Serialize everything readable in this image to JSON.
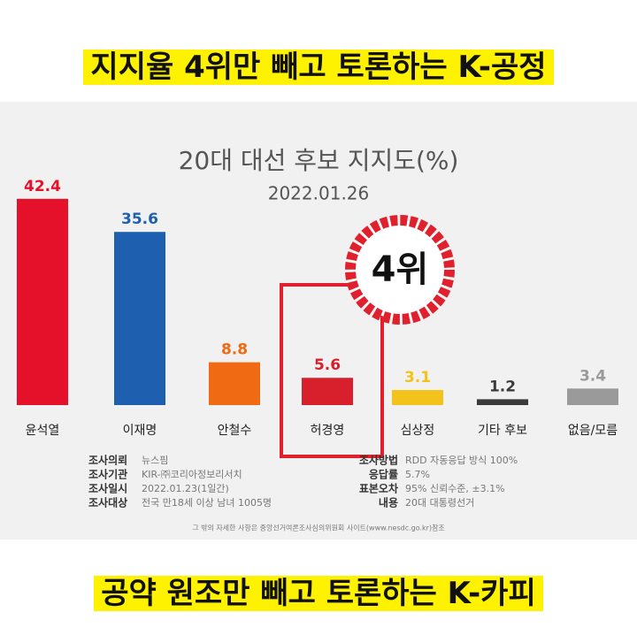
{
  "top_caption": "지지율 4위만 빼고 토론하는 K-공정",
  "bottom_caption": "공약 원조만 빼고 토론하는 K-카피",
  "chart_data": {
    "type": "bar",
    "title": "20대 대선 후보 지지도(%)",
    "subtitle": "2022.01.26",
    "categories": [
      "윤석열",
      "이재명",
      "안철수",
      "허경영",
      "심상정",
      "기타 후보",
      "없음/모름"
    ],
    "values": [
      42.4,
      35.6,
      8.8,
      5.6,
      3.1,
      1.2,
      3.4
    ],
    "colors": [
      "#e5112b",
      "#1f5fb0",
      "#ef6a12",
      "#d81f2c",
      "#f3c21b",
      "#3b3b3b",
      "#9a9a9a"
    ],
    "annotation": "4위"
  },
  "survey_info": {
    "left": [
      [
        "조사의뢰",
        "뉴스핌"
      ],
      [
        "조사기관",
        "KIR-㈜코리아정보리서치"
      ],
      [
        "조사일시",
        "2022.01.23(1일간)"
      ],
      [
        "조사대상",
        "전국 만18세 이상 남녀 1005명"
      ]
    ],
    "right": [
      [
        "조사방법",
        "RDD 자동응답 방식 100%"
      ],
      [
        "응답률",
        "5.7%"
      ],
      [
        "표본오차",
        "95% 신뢰수준, ±3.1%"
      ],
      [
        "내용",
        "20대 대통령선거"
      ]
    ]
  },
  "footnote": "그 밖의 자세한 사항은 중앙선거여론조사심의위원회 사이트(www.nesdc.go.kr)참조"
}
